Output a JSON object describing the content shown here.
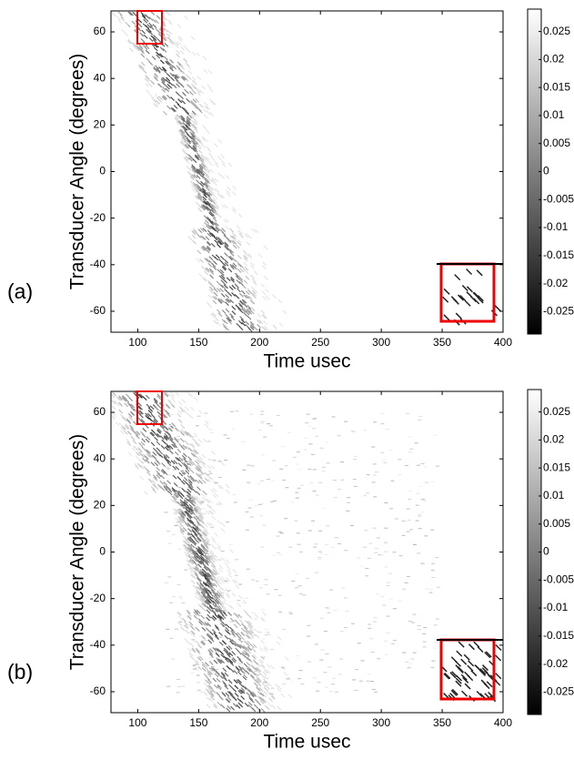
{
  "chart_data": [
    {
      "type": "heatmap",
      "panel_label": "(a)",
      "xlabel": "Time usec",
      "ylabel": "Transducer Angle (degrees)",
      "xlim": [
        78,
        400
      ],
      "xticks": [
        100,
        150,
        200,
        250,
        300,
        350,
        400
      ],
      "ylim": [
        -69,
        69
      ],
      "yticks": [
        -60,
        -40,
        -20,
        0,
        20,
        40,
        60
      ],
      "clim": [
        -0.029,
        0.029
      ],
      "colormap": "gray",
      "cticks": [
        -0.025,
        -0.02,
        -0.015,
        -0.01,
        -0.005,
        0,
        0.005,
        0.01,
        0.015,
        0.02,
        0.025
      ]
    },
    {
      "type": "heatmap",
      "panel_label": "(b)",
      "xlabel": "Time usec",
      "ylabel": "Transducer Angle (degrees)",
      "xlim": [
        78,
        400
      ],
      "xticks": [
        100,
        150,
        200,
        250,
        300,
        350,
        400
      ],
      "ylim": [
        -69,
        69
      ],
      "yticks": [
        -60,
        -40,
        -20,
        0,
        20,
        40,
        60
      ],
      "clim": [
        -0.029,
        0.029
      ],
      "colormap": "gray",
      "cticks": [
        -0.025,
        -0.02,
        -0.015,
        -0.01,
        -0.005,
        0,
        0.005,
        0.01,
        0.015,
        0.02,
        0.025
      ]
    }
  ]
}
